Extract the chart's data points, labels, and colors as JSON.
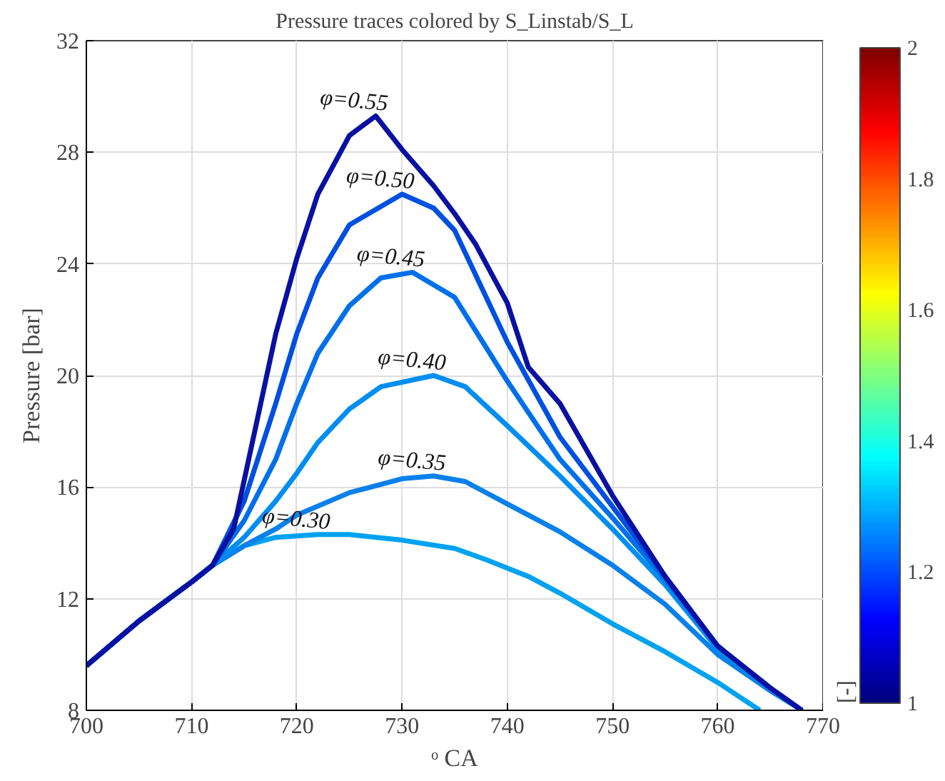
{
  "chart_data": {
    "type": "line",
    "title": "Pressure traces colored by S_Linstab/S_L",
    "xlabel": "ᵒ CA",
    "ylabel": "Pressure [bar]",
    "clabel": "[-]",
    "xlim": [
      700,
      770
    ],
    "ylim": [
      8,
      32
    ],
    "xticks": [
      700,
      710,
      720,
      730,
      740,
      750,
      760,
      770
    ],
    "yticks": [
      8,
      12,
      16,
      20,
      24,
      28,
      32
    ],
    "clim": [
      1,
      2
    ],
    "cticks": [
      1,
      1.2,
      1.4,
      1.6,
      1.8,
      2
    ],
    "grid": true,
    "marker": "none",
    "line_style": "solid",
    "series": [
      {
        "name": "φ=0.55",
        "color": "#0a10a0",
        "x": [
          700,
          705,
          710,
          712,
          714,
          716,
          718,
          720,
          722,
          725,
          727.5,
          730,
          733,
          735,
          737,
          740,
          742,
          745,
          750,
          755,
          760,
          765,
          768
        ],
        "values": [
          9.6,
          11.2,
          12.6,
          13.2,
          14.5,
          18,
          21.5,
          24.2,
          26.5,
          28.6,
          29.3,
          28.1,
          26.8,
          25.8,
          24.7,
          22.6,
          20.3,
          19,
          15.7,
          12.8,
          10.3,
          8.8,
          8.0
        ]
      },
      {
        "name": "φ=0.50",
        "color": "#0050e0",
        "x": [
          700,
          705,
          710,
          712,
          715,
          718,
          720,
          722,
          725,
          730,
          733,
          735,
          740,
          745,
          750,
          755,
          760,
          765,
          768
        ],
        "values": [
          9.6,
          11.2,
          12.6,
          13.2,
          15.5,
          19,
          21.5,
          23.5,
          25.4,
          26.5,
          26,
          25.2,
          21.2,
          17.8,
          15.3,
          12.8,
          10.3,
          8.8,
          8.0
        ]
      },
      {
        "name": "φ=0.45",
        "color": "#0070ea",
        "x": [
          700,
          705,
          710,
          712,
          715,
          718,
          720,
          722,
          725,
          728,
          731,
          735,
          740,
          745,
          750,
          755,
          760,
          765,
          768
        ],
        "values": [
          9.6,
          11.2,
          12.6,
          13.2,
          14.8,
          17,
          19,
          20.8,
          22.5,
          23.5,
          23.7,
          22.8,
          19.8,
          17,
          14.9,
          12.7,
          10.3,
          8.8,
          8.0
        ]
      },
      {
        "name": "φ=0.40",
        "color": "#008ef0",
        "x": [
          700,
          705,
          710,
          712,
          715,
          718,
          720,
          722,
          725,
          728,
          733,
          736,
          740,
          745,
          750,
          755,
          760,
          765,
          768
        ],
        "values": [
          9.6,
          11.2,
          12.6,
          13.2,
          14.2,
          15.5,
          16.5,
          17.6,
          18.8,
          19.6,
          20,
          19.6,
          18.2,
          16.4,
          14.5,
          12.5,
          10.2,
          8.8,
          8.0
        ]
      },
      {
        "name": "φ=0.35",
        "color": "#0a80ea",
        "x": [
          700,
          705,
          710,
          712,
          715,
          718,
          720,
          725,
          730,
          733,
          736,
          740,
          745,
          750,
          755,
          760,
          765,
          768
        ],
        "values": [
          9.6,
          11.2,
          12.6,
          13.2,
          13.9,
          14.5,
          15,
          15.8,
          16.3,
          16.4,
          16.2,
          15.4,
          14.4,
          13.2,
          11.8,
          10.0,
          8.7,
          8.0
        ]
      },
      {
        "name": "φ=0.30",
        "color": "#00a2f0",
        "x": [
          700,
          705,
          710,
          712,
          715,
          718,
          722,
          725,
          730,
          735,
          738,
          740,
          742,
          745,
          750,
          755,
          760,
          764
        ],
        "values": [
          9.6,
          11.2,
          12.6,
          13.2,
          13.9,
          14.2,
          14.3,
          14.3,
          14.1,
          13.8,
          13.4,
          13.1,
          12.8,
          12.2,
          11.1,
          10.1,
          9.0,
          8.0
        ]
      }
    ]
  }
}
